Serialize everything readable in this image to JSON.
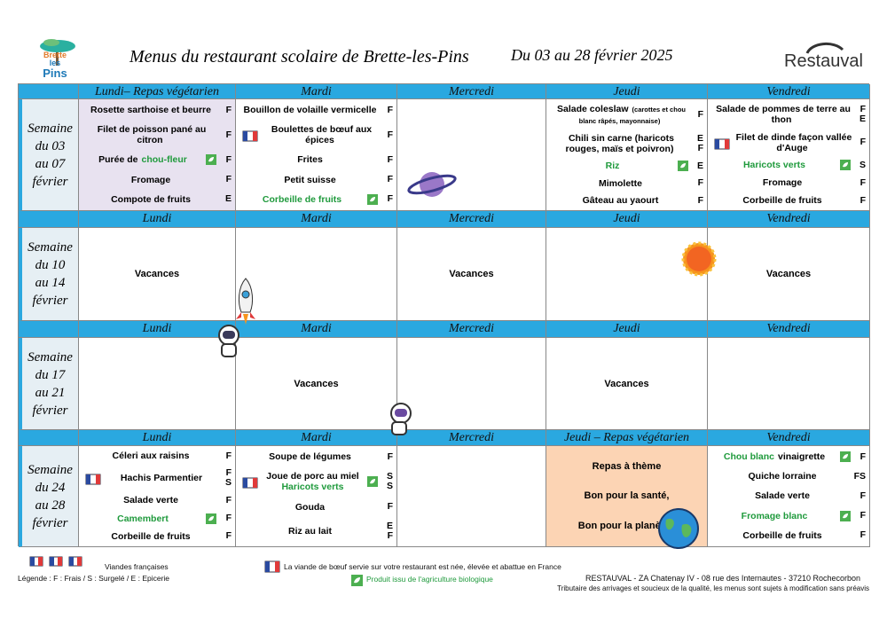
{
  "header": {
    "logo_text": [
      "Brette",
      "les",
      "Pins"
    ],
    "title": "Menus du restaurant scolaire de Brette-les-Pins",
    "dates": "Du 03 au 28 février 2025",
    "brand": "Restauval"
  },
  "weeks": [
    {
      "label": [
        "Semaine",
        "du 03",
        "au 07",
        "février"
      ],
      "days": [
        {
          "name": "Lundi– Repas végétarien",
          "theme": "lavender",
          "items": [
            {
              "parts": [
                {
                  "text": "Rosette sarthoise et beurre"
                }
              ],
              "codes": [
                "F"
              ]
            },
            {
              "parts": [
                {
                  "text": "Filet de poisson pané au citron"
                }
              ],
              "codes": [
                "F"
              ]
            },
            {
              "parts": [
                {
                  "text": "Purée de"
                },
                {
                  "text": "chou-fleur",
                  "green": true
                }
              ],
              "bio": true,
              "codes": [
                "F"
              ]
            },
            {
              "parts": [
                {
                  "text": "Fromage"
                }
              ],
              "codes": [
                "F"
              ]
            },
            {
              "parts": [
                {
                  "text": "Compote de fruits"
                }
              ],
              "codes": [
                "E"
              ]
            }
          ]
        },
        {
          "name": "Mardi",
          "items": [
            {
              "parts": [
                {
                  "text": "Bouillon de volaille vermicelle"
                }
              ],
              "codes": [
                "F"
              ]
            },
            {
              "parts": [
                {
                  "text": "Boulettes de bœuf aux épices"
                }
              ],
              "fr": true,
              "codes": [
                "F"
              ]
            },
            {
              "parts": [
                {
                  "text": "Frites"
                }
              ],
              "codes": [
                "F"
              ]
            },
            {
              "parts": [
                {
                  "text": "Petit suisse"
                }
              ],
              "codes": [
                "F"
              ]
            },
            {
              "parts": [
                {
                  "text": "Corbeille de fruits",
                  "green": true
                }
              ],
              "bio": true,
              "codes": [
                "F"
              ]
            }
          ]
        },
        {
          "name": "Mercredi"
        },
        {
          "name": "Jeudi",
          "items": [
            {
              "parts": [
                {
                  "text": "Salade coleslaw"
                },
                {
                  "text": "(carottes et chou blanc râpés, mayonnaise)",
                  "small": true
                }
              ],
              "codes": [
                "F"
              ]
            },
            {
              "parts": [
                {
                  "text": "Chili sin carne (haricots rouges, maïs et poivron)"
                }
              ],
              "codes": [
                "E",
                "F"
              ]
            },
            {
              "parts": [
                {
                  "text": "Riz",
                  "green": true
                }
              ],
              "bio": true,
              "codes": [
                "E"
              ]
            },
            {
              "parts": [
                {
                  "text": "Mimolette"
                }
              ],
              "codes": [
                "F"
              ]
            },
            {
              "parts": [
                {
                  "text": "Gâteau au yaourt"
                }
              ],
              "codes": [
                "F"
              ]
            }
          ]
        },
        {
          "name": "Vendredi",
          "items": [
            {
              "parts": [
                {
                  "text": "Salade de pommes de terre au thon"
                }
              ],
              "codes": [
                "F",
                "E"
              ]
            },
            {
              "parts": [
                {
                  "text": "Filet de dinde façon vallée d'Auge"
                }
              ],
              "fr": true,
              "codes": [
                "F"
              ]
            },
            {
              "parts": [
                {
                  "text": "Haricots verts",
                  "green": true
                }
              ],
              "bio": true,
              "codes": [
                "S"
              ]
            },
            {
              "parts": [
                {
                  "text": "Fromage"
                }
              ],
              "codes": [
                "F"
              ]
            },
            {
              "parts": [
                {
                  "text": "Corbeille de fruits"
                }
              ],
              "codes": [
                "F"
              ]
            }
          ]
        }
      ]
    },
    {
      "label": [
        "Semaine",
        "du 10",
        "au 14",
        "février"
      ],
      "days": [
        {
          "name": "Lundi",
          "text": "Vacances"
        },
        {
          "name": "Mardi"
        },
        {
          "name": "Mercredi",
          "text": "Vacances"
        },
        {
          "name": "Jeudi"
        },
        {
          "name": "Vendredi",
          "text": "Vacances"
        }
      ]
    },
    {
      "label": [
        "Semaine",
        "du 17",
        "au 21",
        "février"
      ],
      "days": [
        {
          "name": "Lundi"
        },
        {
          "name": "Mardi",
          "text": "Vacances"
        },
        {
          "name": "Mercredi"
        },
        {
          "name": "Jeudi",
          "text": "Vacances"
        },
        {
          "name": "Vendredi"
        }
      ]
    },
    {
      "label": [
        "Semaine",
        "du 24",
        "au 28",
        "février"
      ],
      "days": [
        {
          "name": "Lundi",
          "items": [
            {
              "parts": [
                {
                  "text": "Céleri aux raisins"
                }
              ],
              "codes": [
                "F"
              ]
            },
            {
              "parts": [
                {
                  "text": "Hachis Parmentier"
                }
              ],
              "fr": true,
              "codes": [
                "F",
                "S"
              ]
            },
            {
              "parts": [
                {
                  "text": "Salade verte"
                }
              ],
              "codes": [
                "F"
              ]
            },
            {
              "parts": [
                {
                  "text": "Camembert",
                  "green": true
                }
              ],
              "bio": true,
              "codes": [
                "F"
              ]
            },
            {
              "parts": [
                {
                  "text": "Corbeille de fruits"
                }
              ],
              "codes": [
                "F"
              ]
            }
          ]
        },
        {
          "name": "Mardi",
          "items": [
            {
              "parts": [
                {
                  "text": "Soupe de légumes"
                }
              ],
              "codes": [
                "F"
              ]
            },
            {
              "parts": [
                {
                  "text": "Joue de porc au miel"
                },
                {
                  "text": "Haricots verts",
                  "green": true,
                  "block": true
                }
              ],
              "fr": true,
              "bio": true,
              "codes": [
                "S",
                "S"
              ]
            },
            {
              "parts": [
                {
                  "text": "Gouda"
                }
              ],
              "codes": [
                "F"
              ]
            },
            {
              "parts": [
                {
                  "text": "Riz au lait"
                }
              ],
              "codes": [
                "E",
                "F"
              ]
            }
          ]
        },
        {
          "name": "Mercredi"
        },
        {
          "name": "Jeudi – Repas végétarien",
          "theme": "orange",
          "lines": [
            "Repas à thème",
            "Bon pour la santé,",
            "Bon pour la planète !"
          ]
        },
        {
          "name": "Vendredi",
          "items": [
            {
              "parts": [
                {
                  "text": "Chou blanc",
                  "green": true
                },
                {
                  "text": "vinaigrette"
                }
              ],
              "bio": true,
              "codes": [
                "F"
              ]
            },
            {
              "parts": [
                {
                  "text": "Quiche lorraine"
                }
              ],
              "codes": [
                "FS"
              ]
            },
            {
              "parts": [
                {
                  "text": "Salade verte"
                }
              ],
              "codes": [
                "F"
              ]
            },
            {
              "parts": [
                {
                  "text": "Fromage blanc",
                  "green": true
                }
              ],
              "bio": true,
              "codes": [
                "F"
              ]
            },
            {
              "parts": [
                {
                  "text": "Corbeille de fruits"
                }
              ],
              "codes": [
                "F"
              ]
            }
          ]
        }
      ]
    }
  ],
  "footer": {
    "meat": "Viandes françaises",
    "legend": "Légende : F : Frais / S : Surgelé / E : Epicerie",
    "beef": "La viande de bœuf servie sur votre restaurant est née, élevée et abattue en France",
    "bio": "Produit issu de l'agriculture biologique",
    "address": "RESTAUVAL - ZA Chatenay IV - 08 rue des Internautes - 37210 Rochecorbon",
    "notice": "Tributaire des arrivages et soucieux de la qualité, les menus sont sujets à modification sans préavis"
  }
}
